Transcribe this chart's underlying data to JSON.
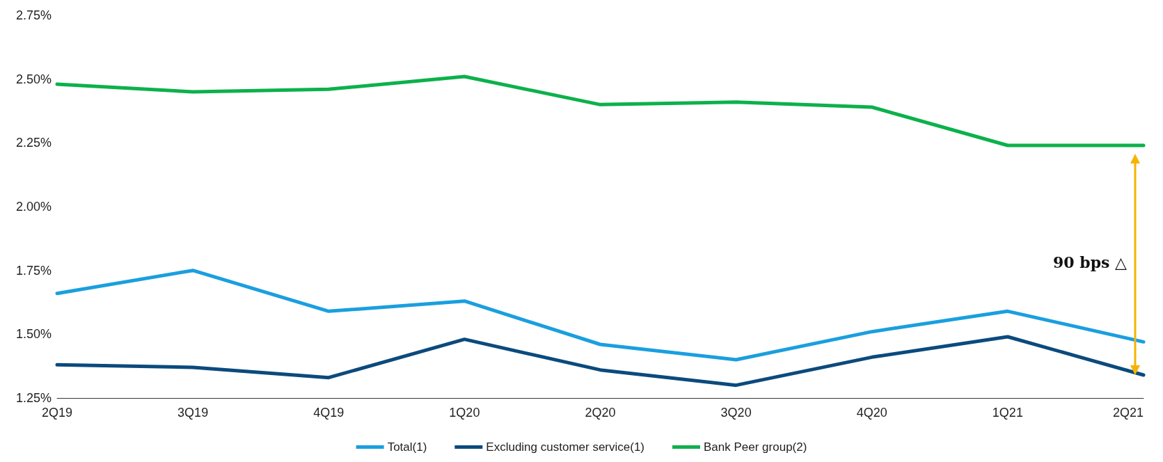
{
  "chart_data": {
    "type": "line",
    "categories": [
      "2Q19",
      "3Q19",
      "4Q19",
      "1Q20",
      "2Q20",
      "3Q20",
      "4Q20",
      "1Q21",
      "2Q21"
    ],
    "series": [
      {
        "name": "Total(1)",
        "color": "#1a9fdf",
        "values": [
          1.66,
          1.75,
          1.59,
          1.63,
          1.46,
          1.4,
          1.51,
          1.59,
          1.47
        ]
      },
      {
        "name": "Excluding customer service(1)",
        "color": "#0b4a7d",
        "values": [
          1.38,
          1.37,
          1.33,
          1.48,
          1.36,
          1.3,
          1.41,
          1.49,
          1.34
        ]
      },
      {
        "name": "Bank Peer group(2)",
        "color": "#0cb14b",
        "values": [
          2.48,
          2.45,
          2.46,
          2.51,
          2.4,
          2.41,
          2.39,
          2.24,
          2.24
        ]
      }
    ],
    "ylim": [
      1.25,
      2.75
    ],
    "yticks": [
      {
        "value": 1.25,
        "label": "1.25%"
      },
      {
        "value": 1.5,
        "label": "1.50%"
      },
      {
        "value": 1.75,
        "label": "1.75%"
      },
      {
        "value": 2.0,
        "label": "2.00%"
      },
      {
        "value": 2.25,
        "label": "2.25%"
      },
      {
        "value": 2.5,
        "label": "2.50%"
      },
      {
        "value": 2.75,
        "label": "2.75%"
      }
    ],
    "annotations": [
      "90 bps △"
    ],
    "grid": false,
    "legend": "bottom",
    "marker": "none",
    "line_style": "solid"
  }
}
